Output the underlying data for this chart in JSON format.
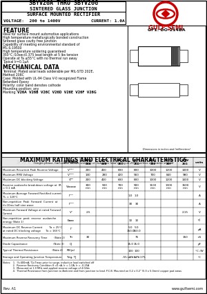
{
  "title1": "SBYV26A THRU SBYV26G",
  "title2": "SINTERED GLASS JUNCTION",
  "title3": "SURFACE MOUNTED RECTIFIER",
  "title4": "VOLTAGE:  200 to 1400V",
  "title4b": "CURRENT: 1.0A",
  "feature_title": "FEATURE",
  "features": [
    "Ideal for surface mount automotive applications",
    "High temperature metallurgically bonded construction",
    "Sintered glass cavity free junction",
    "Capability of meeting environmental standard of",
    "MIL-S-19500",
    "High temperature soldering guaranteed",
    "350°C /10sec/0.375 lead length at 5 lbs tension",
    "Operate at Ta ≤55°C with no thermal run away",
    "Typical Ir=0.1μA"
  ],
  "mech_title": "MECHANICAL DATA",
  "mech_data": [
    "Terminal: Plated axial leads solderable per MIL-STD 202E,",
    "Method 208C",
    "Case: Molded with UL-94 Class V-0 recognized Flame",
    "Retardant Epoxy",
    "Polarity: color band denotes cathode",
    "Mounting position: any",
    "Marking: |V26A  V26B  V26C  V26D  V26E  V26F  V26G"
  ],
  "package_label": "GF1: DO-214BA",
  "dim_note": "Dimensions in inches and (millimeters)",
  "table_title": "MAXIMUM RATINGS AND ELECTRICAL CHARACTERISTICS",
  "table_subtitle": "(single-phase, half-wave, 60HZ, resistive or inductive load rating at 25°C, unless otherwise stated)",
  "col_headers": [
    "SYMBOL",
    "SBYV\n26A",
    "SBYV\n26B",
    "SBYV\n26C",
    "SBYV\n26D",
    "SBYV\n26E",
    "SBYV\n26F",
    "SBYV\n26G",
    "units"
  ],
  "watermark": "Э Л Е К Т Р",
  "rows": [
    {
      "param": "Maximum Recurrent Peak Reverse Voltage",
      "symbol": "Vᵂᴿᴹ",
      "values": [
        "200",
        "400",
        "600",
        "800",
        "1000",
        "1200",
        "1400"
      ],
      "unit": "V"
    },
    {
      "param": "Maximum RMS Voltage",
      "symbol": "Vᴹᴹᴹ",
      "values": [
        "140",
        "280",
        "420",
        "560",
        "700",
        "840",
        "980"
      ],
      "unit": "V"
    },
    {
      "param": "Maximum DC blocking Voltage",
      "symbol": "Vᴰᴰ",
      "values": [
        "200",
        "400",
        "600",
        "800",
        "1000",
        "1200",
        "1400"
      ],
      "unit": "V"
    },
    {
      "param": "Reverse avalanche breakdown voltage at  IR\n= 0.1 mA",
      "symbol": "Vᴂᴂᴂ",
      "values": [
        "300\nmin",
        "500\nmin",
        "700\nmin",
        "900\nmin",
        "1100\nmin",
        "1300\nmin",
        "1500\nmin"
      ],
      "unit": "V"
    },
    {
      "param": "Maximum Average Forward Rectified current\nTL = 120°C",
      "symbol": "Iᴼᵁᵁ",
      "values_merged": "1.0",
      "unit": "A"
    },
    {
      "param": "Non-repetitive  Peak  Forward  Current  at\ntl=10ms half sine wave",
      "symbol": "Iᴼᴹᴹ",
      "values_merged": "30",
      "unit": "A"
    },
    {
      "param": "Maximum Forward Voltage at rated Forward\nCurrent",
      "symbol": "Vᴼ",
      "values_partial": {
        "26A": "2.5",
        "26G": "2.15"
      },
      "unit": "V"
    },
    {
      "param": "Non-repetitive  peak  reverse  avalanche\nenergy (Note 1)",
      "symbol": "Eᴃᴃᴃ",
      "values_merged": "10",
      "unit": "nJ"
    },
    {
      "param": "Maximum DC Reverse Current        Ta = 25°C\nat rated DC blocking voltage      Ta = 165°C",
      "symbol": "Iᴹ",
      "values_merged": "5.0\n150.0",
      "unit": "μA"
    },
    {
      "param": "Maximum Reverse Recovery Time        (Note 2)",
      "symbol": "Trr",
      "values_partial3": {
        "26A": "30",
        "26D": "75",
        "26G": "150"
      },
      "unit": "nS"
    },
    {
      "param": "Diode Capacitance                              (Note 3)",
      "symbol": "CJ",
      "values_merged": "15.0",
      "unit": "pF"
    },
    {
      "param": "Typical Thermal Resistance                (Note 4)",
      "symbol": "Rθ(ja)",
      "values_merged": "100",
      "unit": "°C /W"
    },
    {
      "param": "Storage and Operating Junction Temperature",
      "symbol": "Tstg, TJ",
      "values_merged": "-55 to +175",
      "unit": "°C"
    }
  ],
  "notes": [
    "Notes:   1.  If=400mA, TJ=Tmax prior to surge, inductive load switched off",
    "             2.  Reverse Recovery Condition If =0 nA, Ir = 1.0A, Ir = -0.25A",
    "             3.  Measured at 1.0 MHz and applied reverse voltage of 4.0Vdc",
    "             4.  Thermal Resistance from Junction to Ambient and from junction to lead. P.C.B. Mounted on 0.2 x 0.2\" (5.0 x 5.0mm) copper pad areas"
  ],
  "footer_left": "Rev. A1",
  "footer_right": "www.gulfsemi.com",
  "logo_color": "#cc0000",
  "bg_color": "#ffffff"
}
